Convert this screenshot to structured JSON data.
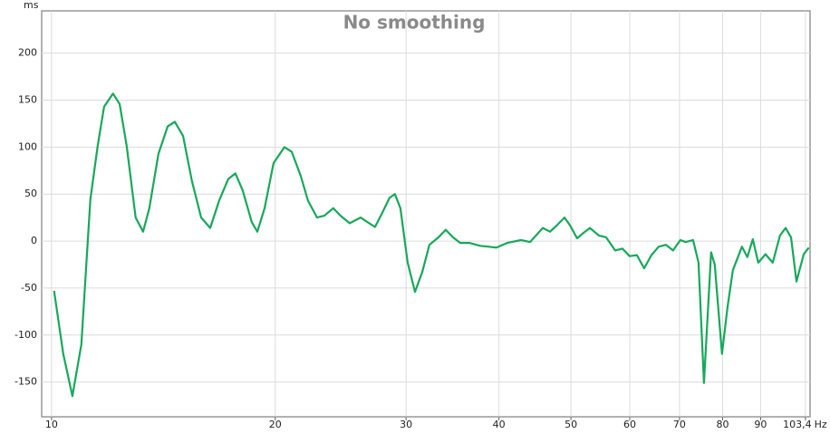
{
  "chart_data": {
    "type": "line",
    "title": "No smoothing",
    "y_label": "ms",
    "x_label": "Hz",
    "log_x": true,
    "grid": true,
    "xlim": [
      9.7,
      104.9
    ],
    "ylim": [
      -187,
      245
    ],
    "xticks": [
      10,
      20,
      30,
      40,
      50,
      60,
      70,
      80,
      90,
      {
        "value": 103.4,
        "label": "103,4"
      }
    ],
    "yticks": [
      200,
      150,
      100,
      50,
      0,
      -50,
      -100,
      -150
    ],
    "series": [
      {
        "color": "#17a85a",
        "x": [
          10.08,
          10.37,
          10.67,
          10.97,
          11.28,
          11.54,
          11.77,
          12.1,
          12.35,
          12.62,
          12.98,
          13.28,
          13.54,
          13.93,
          14.33,
          14.65,
          15.03,
          15.45,
          15.9,
          16.35,
          16.81,
          17.29,
          17.68,
          18.08,
          18.6,
          18.92,
          19.35,
          19.9,
          20.58,
          21.05,
          21.65,
          22.14,
          22.77,
          23.28,
          23.94,
          24.49,
          25.19,
          26.05,
          26.64,
          27.25,
          27.86,
          28.5,
          28.98,
          29.48,
          30.15,
          30.84,
          31.54,
          32.25,
          33.17,
          33.92,
          34.69,
          35.48,
          36.49,
          37.74,
          38.81,
          39.69,
          41.05,
          42.82,
          44.05,
          45.82,
          46.86,
          47.92,
          49.01,
          49.84,
          50.97,
          51.84,
          53.02,
          54.52,
          55.76,
          57.35,
          58.65,
          59.98,
          61.34,
          62.73,
          64.16,
          65.61,
          67.1,
          68.62,
          70.17,
          71.37,
          73.0,
          74.24,
          75.5,
          77.21,
          78.08,
          79.85,
          81.2,
          82.58,
          84.93,
          86.38,
          87.85,
          89.34,
          91.37,
          93.45,
          95.56,
          97.23,
          98.88,
          100.56,
          102.85,
          104.5
        ],
        "values": [
          -53,
          -120,
          -165,
          -110,
          44,
          102,
          143,
          157,
          146,
          102,
          25,
          10,
          35,
          93,
          122,
          127,
          112,
          64,
          25,
          14,
          43,
          66,
          72,
          54,
          20,
          10,
          35,
          83,
          100,
          95,
          69,
          43,
          25,
          27,
          35,
          27,
          19,
          25,
          20,
          15,
          30,
          46,
          50,
          35,
          -23,
          -54,
          -33,
          -4,
          4,
          12,
          4,
          -2,
          -2,
          -5,
          -6,
          -7,
          -2,
          1,
          -1,
          14,
          10,
          17,
          25,
          17,
          3,
          8,
          14,
          6,
          4,
          -10,
          -8,
          -16,
          -15,
          -29,
          -15,
          -6,
          -4,
          -10,
          1,
          -1,
          1,
          -23,
          -151,
          -12,
          -25,
          -120,
          -71,
          -31,
          -6,
          -17,
          2,
          -23,
          -14,
          -23,
          6,
          14,
          4,
          -43,
          -14,
          -7
        ]
      }
    ]
  }
}
